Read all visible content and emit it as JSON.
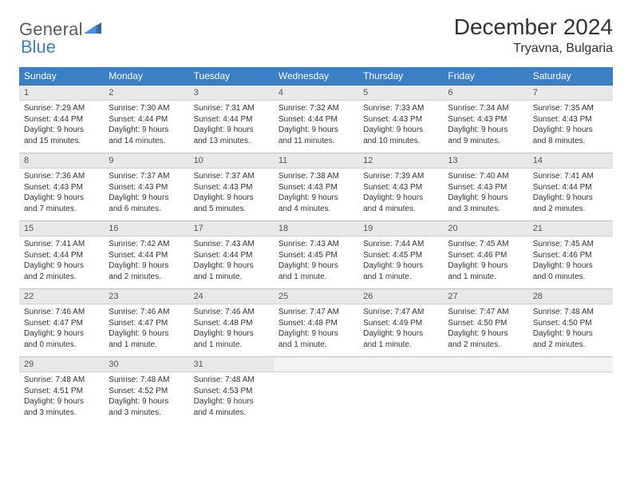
{
  "logo": {
    "text1": "General",
    "text2": "Blue"
  },
  "title": "December 2024",
  "location": "Tryavna, Bulgaria",
  "colors": {
    "header_bg": "#3b7fc4",
    "header_text": "#ffffff",
    "daynum_bg": "#e8e8e8",
    "daynum_text": "#555555",
    "body_text": "#333333",
    "logo_gray": "#5c5c5c",
    "logo_blue": "#3b7fc4"
  },
  "day_headers": [
    "Sunday",
    "Monday",
    "Tuesday",
    "Wednesday",
    "Thursday",
    "Friday",
    "Saturday"
  ],
  "weeks": [
    [
      {
        "n": "1",
        "sr": "Sunrise: 7:29 AM",
        "ss": "Sunset: 4:44 PM",
        "d1": "Daylight: 9 hours",
        "d2": "and 15 minutes."
      },
      {
        "n": "2",
        "sr": "Sunrise: 7:30 AM",
        "ss": "Sunset: 4:44 PM",
        "d1": "Daylight: 9 hours",
        "d2": "and 14 minutes."
      },
      {
        "n": "3",
        "sr": "Sunrise: 7:31 AM",
        "ss": "Sunset: 4:44 PM",
        "d1": "Daylight: 9 hours",
        "d2": "and 13 minutes."
      },
      {
        "n": "4",
        "sr": "Sunrise: 7:32 AM",
        "ss": "Sunset: 4:44 PM",
        "d1": "Daylight: 9 hours",
        "d2": "and 11 minutes."
      },
      {
        "n": "5",
        "sr": "Sunrise: 7:33 AM",
        "ss": "Sunset: 4:43 PM",
        "d1": "Daylight: 9 hours",
        "d2": "and 10 minutes."
      },
      {
        "n": "6",
        "sr": "Sunrise: 7:34 AM",
        "ss": "Sunset: 4:43 PM",
        "d1": "Daylight: 9 hours",
        "d2": "and 9 minutes."
      },
      {
        "n": "7",
        "sr": "Sunrise: 7:35 AM",
        "ss": "Sunset: 4:43 PM",
        "d1": "Daylight: 9 hours",
        "d2": "and 8 minutes."
      }
    ],
    [
      {
        "n": "8",
        "sr": "Sunrise: 7:36 AM",
        "ss": "Sunset: 4:43 PM",
        "d1": "Daylight: 9 hours",
        "d2": "and 7 minutes."
      },
      {
        "n": "9",
        "sr": "Sunrise: 7:37 AM",
        "ss": "Sunset: 4:43 PM",
        "d1": "Daylight: 9 hours",
        "d2": "and 6 minutes."
      },
      {
        "n": "10",
        "sr": "Sunrise: 7:37 AM",
        "ss": "Sunset: 4:43 PM",
        "d1": "Daylight: 9 hours",
        "d2": "and 5 minutes."
      },
      {
        "n": "11",
        "sr": "Sunrise: 7:38 AM",
        "ss": "Sunset: 4:43 PM",
        "d1": "Daylight: 9 hours",
        "d2": "and 4 minutes."
      },
      {
        "n": "12",
        "sr": "Sunrise: 7:39 AM",
        "ss": "Sunset: 4:43 PM",
        "d1": "Daylight: 9 hours",
        "d2": "and 4 minutes."
      },
      {
        "n": "13",
        "sr": "Sunrise: 7:40 AM",
        "ss": "Sunset: 4:43 PM",
        "d1": "Daylight: 9 hours",
        "d2": "and 3 minutes."
      },
      {
        "n": "14",
        "sr": "Sunrise: 7:41 AM",
        "ss": "Sunset: 4:44 PM",
        "d1": "Daylight: 9 hours",
        "d2": "and 2 minutes."
      }
    ],
    [
      {
        "n": "15",
        "sr": "Sunrise: 7:41 AM",
        "ss": "Sunset: 4:44 PM",
        "d1": "Daylight: 9 hours",
        "d2": "and 2 minutes."
      },
      {
        "n": "16",
        "sr": "Sunrise: 7:42 AM",
        "ss": "Sunset: 4:44 PM",
        "d1": "Daylight: 9 hours",
        "d2": "and 2 minutes."
      },
      {
        "n": "17",
        "sr": "Sunrise: 7:43 AM",
        "ss": "Sunset: 4:44 PM",
        "d1": "Daylight: 9 hours",
        "d2": "and 1 minute."
      },
      {
        "n": "18",
        "sr": "Sunrise: 7:43 AM",
        "ss": "Sunset: 4:45 PM",
        "d1": "Daylight: 9 hours",
        "d2": "and 1 minute."
      },
      {
        "n": "19",
        "sr": "Sunrise: 7:44 AM",
        "ss": "Sunset: 4:45 PM",
        "d1": "Daylight: 9 hours",
        "d2": "and 1 minute."
      },
      {
        "n": "20",
        "sr": "Sunrise: 7:45 AM",
        "ss": "Sunset: 4:46 PM",
        "d1": "Daylight: 9 hours",
        "d2": "and 1 minute."
      },
      {
        "n": "21",
        "sr": "Sunrise: 7:45 AM",
        "ss": "Sunset: 4:46 PM",
        "d1": "Daylight: 9 hours",
        "d2": "and 0 minutes."
      }
    ],
    [
      {
        "n": "22",
        "sr": "Sunrise: 7:46 AM",
        "ss": "Sunset: 4:47 PM",
        "d1": "Daylight: 9 hours",
        "d2": "and 0 minutes."
      },
      {
        "n": "23",
        "sr": "Sunrise: 7:46 AM",
        "ss": "Sunset: 4:47 PM",
        "d1": "Daylight: 9 hours",
        "d2": "and 1 minute."
      },
      {
        "n": "24",
        "sr": "Sunrise: 7:46 AM",
        "ss": "Sunset: 4:48 PM",
        "d1": "Daylight: 9 hours",
        "d2": "and 1 minute."
      },
      {
        "n": "25",
        "sr": "Sunrise: 7:47 AM",
        "ss": "Sunset: 4:48 PM",
        "d1": "Daylight: 9 hours",
        "d2": "and 1 minute."
      },
      {
        "n": "26",
        "sr": "Sunrise: 7:47 AM",
        "ss": "Sunset: 4:49 PM",
        "d1": "Daylight: 9 hours",
        "d2": "and 1 minute."
      },
      {
        "n": "27",
        "sr": "Sunrise: 7:47 AM",
        "ss": "Sunset: 4:50 PM",
        "d1": "Daylight: 9 hours",
        "d2": "and 2 minutes."
      },
      {
        "n": "28",
        "sr": "Sunrise: 7:48 AM",
        "ss": "Sunset: 4:50 PM",
        "d1": "Daylight: 9 hours",
        "d2": "and 2 minutes."
      }
    ],
    [
      {
        "n": "29",
        "sr": "Sunrise: 7:48 AM",
        "ss": "Sunset: 4:51 PM",
        "d1": "Daylight: 9 hours",
        "d2": "and 3 minutes."
      },
      {
        "n": "30",
        "sr": "Sunrise: 7:48 AM",
        "ss": "Sunset: 4:52 PM",
        "d1": "Daylight: 9 hours",
        "d2": "and 3 minutes."
      },
      {
        "n": "31",
        "sr": "Sunrise: 7:48 AM",
        "ss": "Sunset: 4:53 PM",
        "d1": "Daylight: 9 hours",
        "d2": "and 4 minutes."
      },
      null,
      null,
      null,
      null
    ]
  ]
}
